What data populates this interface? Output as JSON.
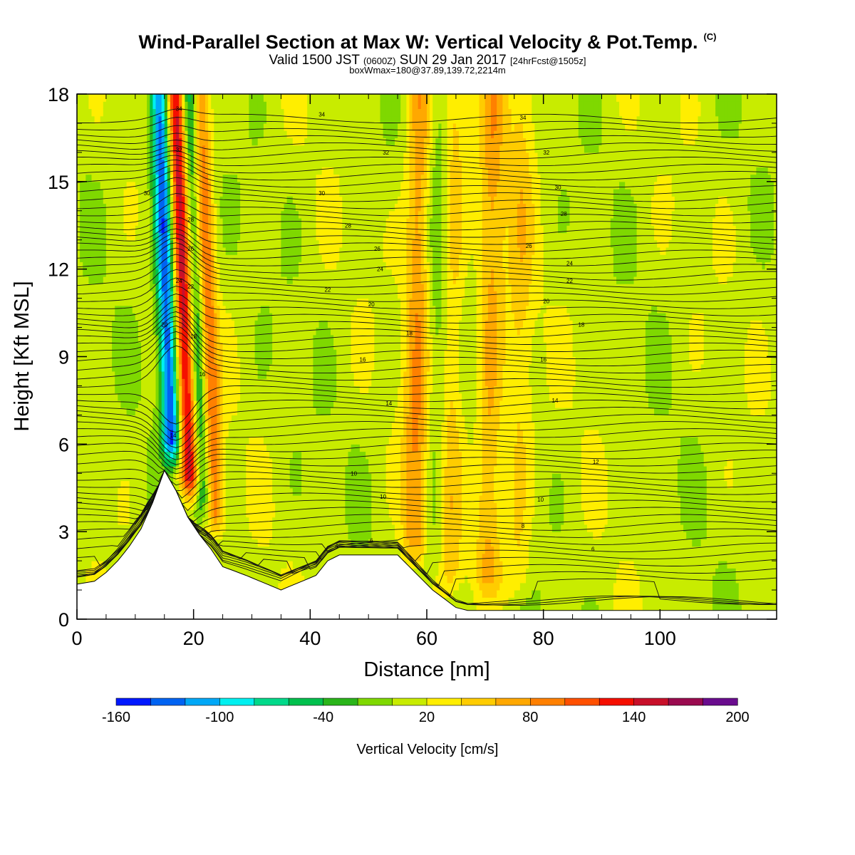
{
  "header": {
    "title": "Wind-Parallel Section at Max W: Vertical Velocity & Pot.Temp.",
    "copyright": "(C)",
    "valid_prefix": "Valid 1500 JST",
    "valid_utc": "(0600Z)",
    "valid_date": "SUN 29 Jan 2017",
    "forecast": "[24hrFcst@1505z]",
    "box_info": "boxWmax=180@37.89,139.72,2214m"
  },
  "chart_data": {
    "type": "heatmap",
    "xlabel": "Distance [nm]",
    "ylabel": "Height [Kft MSL]",
    "xlim": [
      0,
      120
    ],
    "ylim": [
      0,
      18
    ],
    "x_ticks": [
      "0",
      "20",
      "40",
      "60",
      "80",
      "100"
    ],
    "y_ticks": [
      "0",
      "3",
      "6",
      "9",
      "12",
      "15",
      "18"
    ],
    "colorbar": {
      "label": "Vertical Velocity [cm/s]",
      "min": -160,
      "max": 200,
      "step": 20,
      "tick_labels": [
        "-160",
        "-100",
        "-40",
        "20",
        "80",
        "140",
        "200"
      ],
      "colors": [
        "#0018ff",
        "#0063f2",
        "#00a8f7",
        "#00f0f0",
        "#00d98a",
        "#00c04d",
        "#2ab51a",
        "#7fd800",
        "#c8ec00",
        "#ffee00",
        "#ffcc00",
        "#ffa800",
        "#ff8000",
        "#ff5000",
        "#f50f00",
        "#c8102a",
        "#9a0a4f",
        "#6a0c8e"
      ]
    },
    "updraft_bands": [
      {
        "x_center": 18.5,
        "peak_w": 150
      },
      {
        "x_center": 22.5,
        "peak_w": 90
      },
      {
        "x_center": 58.5,
        "peak_w": 70
      },
      {
        "x_center": 64,
        "peak_w": 50
      },
      {
        "x_center": 71,
        "peak_w": 55
      },
      {
        "x_center": 76,
        "peak_w": 35
      }
    ],
    "downdraft_bands": [
      {
        "x_center": 15.5,
        "peak_w": -150
      },
      {
        "x_center": 20.5,
        "peak_w": -80
      },
      {
        "x_center": 62,
        "peak_w": -40
      }
    ],
    "terrain": {
      "x": [
        0,
        3,
        5,
        7,
        9,
        11,
        13,
        15,
        17,
        19,
        21,
        23,
        25,
        29,
        35,
        41,
        43,
        45,
        55,
        57,
        59,
        61,
        63,
        65,
        67,
        120
      ],
      "height_kft": [
        1.2,
        1.3,
        1.6,
        2.0,
        2.5,
        3.1,
        4.0,
        5.1,
        4.4,
        3.5,
        2.9,
        2.4,
        1.8,
        1.5,
        1.0,
        1.5,
        2.0,
        2.2,
        2.2,
        1.8,
        1.4,
        1.0,
        0.7,
        0.4,
        0.3,
        0.3
      ]
    },
    "theta_contour_labels": [
      {
        "x": 17.5,
        "y": 17.5,
        "value": "34"
      },
      {
        "x": 42,
        "y": 17.3,
        "value": "34"
      },
      {
        "x": 76.5,
        "y": 17.2,
        "value": "34"
      },
      {
        "x": 17.5,
        "y": 16.1,
        "value": "32"
      },
      {
        "x": 53,
        "y": 16.0,
        "value": "32"
      },
      {
        "x": 80.5,
        "y": 16.0,
        "value": "32"
      },
      {
        "x": 12,
        "y": 14.6,
        "value": "30"
      },
      {
        "x": 42,
        "y": 14.6,
        "value": "30"
      },
      {
        "x": 82.5,
        "y": 14.8,
        "value": "30"
      },
      {
        "x": 19.5,
        "y": 13.7,
        "value": "28"
      },
      {
        "x": 46.5,
        "y": 13.5,
        "value": "28"
      },
      {
        "x": 83.5,
        "y": 13.9,
        "value": "28"
      },
      {
        "x": 19.5,
        "y": 12.7,
        "value": "26"
      },
      {
        "x": 51.5,
        "y": 12.7,
        "value": "26"
      },
      {
        "x": 77.5,
        "y": 12.8,
        "value": "26"
      },
      {
        "x": 52,
        "y": 12.0,
        "value": "24"
      },
      {
        "x": 84.5,
        "y": 12.2,
        "value": "24"
      },
      {
        "x": 17.5,
        "y": 11.6,
        "value": "24"
      },
      {
        "x": 19.5,
        "y": 11.4,
        "value": "22"
      },
      {
        "x": 43,
        "y": 11.3,
        "value": "22"
      },
      {
        "x": 84.5,
        "y": 11.6,
        "value": "22"
      },
      {
        "x": 50.5,
        "y": 10.8,
        "value": "20"
      },
      {
        "x": 80.5,
        "y": 10.9,
        "value": "20"
      },
      {
        "x": 15,
        "y": 10.1,
        "value": "20"
      },
      {
        "x": 57,
        "y": 9.8,
        "value": "18"
      },
      {
        "x": 86.5,
        "y": 10.1,
        "value": "18"
      },
      {
        "x": 20,
        "y": 9.7,
        "value": "18"
      },
      {
        "x": 49,
        "y": 8.9,
        "value": "16"
      },
      {
        "x": 80,
        "y": 8.9,
        "value": "16"
      },
      {
        "x": 21.5,
        "y": 8.4,
        "value": "16"
      },
      {
        "x": 53.5,
        "y": 7.4,
        "value": "14"
      },
      {
        "x": 82,
        "y": 7.5,
        "value": "14"
      },
      {
        "x": 16.5,
        "y": 6.3,
        "value": "14"
      },
      {
        "x": 89,
        "y": 5.4,
        "value": "12"
      },
      {
        "x": 47.5,
        "y": 5.0,
        "value": "10"
      },
      {
        "x": 52.5,
        "y": 4.2,
        "value": "10"
      },
      {
        "x": 79.5,
        "y": 4.1,
        "value": "10"
      },
      {
        "x": 76.5,
        "y": 3.2,
        "value": "8"
      },
      {
        "x": 50.5,
        "y": 2.7,
        "value": "6"
      },
      {
        "x": 88.5,
        "y": 2.4,
        "value": "6"
      },
      {
        "x": 44.5,
        "y": 2.5,
        "value": "4"
      }
    ]
  }
}
